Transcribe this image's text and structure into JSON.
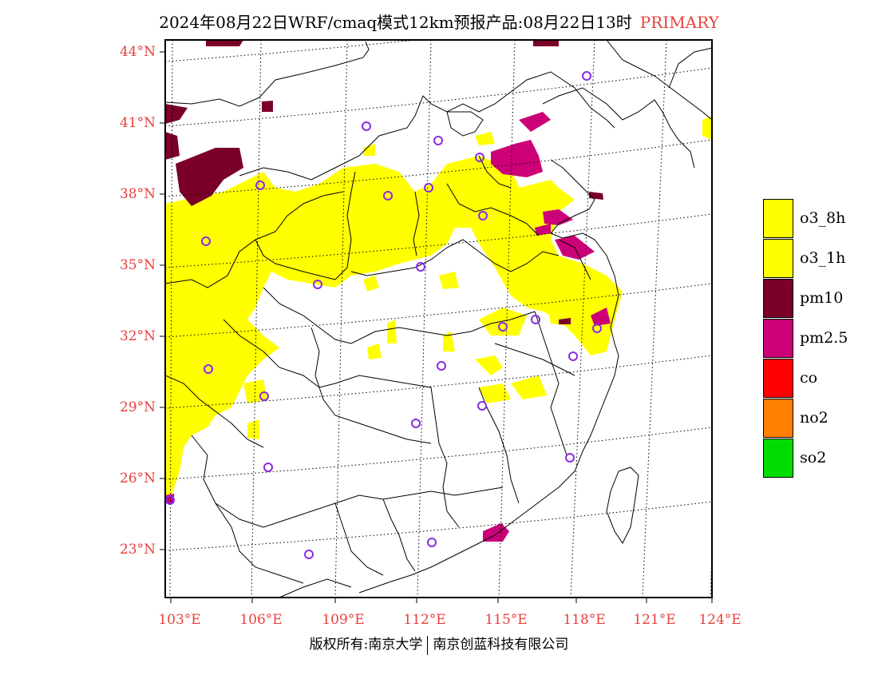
{
  "title": {
    "text": "2024年08月22日WRF/cmaq模式12km预报产品:08月22日13时",
    "tag": "PRIMARY"
  },
  "axes": {
    "lat_labels": [
      "44°N",
      "41°N",
      "38°N",
      "35°N",
      "32°N",
      "29°N",
      "26°N",
      "23°N"
    ],
    "lon_labels": [
      "103°E",
      "106°E",
      "109°E",
      "112°E",
      "115°E",
      "118°E",
      "121°E",
      "124°E"
    ]
  },
  "legend": [
    {
      "label": "o3_8h",
      "color": "#ffff00"
    },
    {
      "label": "o3_1h",
      "color": "#ffff00"
    },
    {
      "label": "pm10",
      "color": "#7a0028"
    },
    {
      "label": "pm2.5",
      "color": "#cc0077"
    },
    {
      "label": "co",
      "color": "#ff0000"
    },
    {
      "label": "no2",
      "color": "#ff7f00"
    },
    {
      "label": "so2",
      "color": "#00dd00"
    }
  ],
  "copyright": {
    "left": "版权所有:南京大学",
    "right": "南京创蓝科技有限公司"
  },
  "colors": {
    "label_red": "#e8403c",
    "station_marker": "#8a2be2"
  }
}
